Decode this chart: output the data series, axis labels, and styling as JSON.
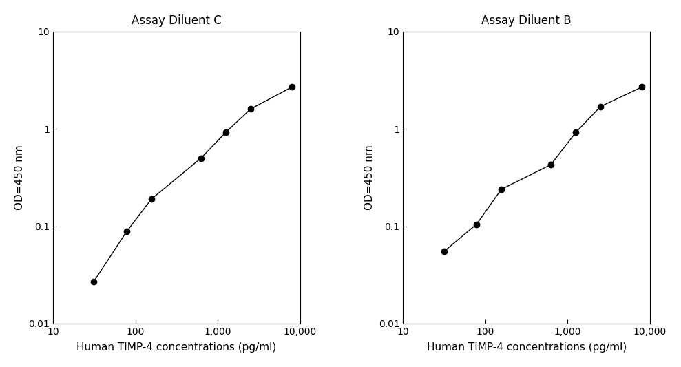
{
  "chart1": {
    "title": "Assay Diluent C",
    "x": [
      31.25,
      78.125,
      156.25,
      625,
      1250,
      2500,
      8000
    ],
    "y": [
      0.027,
      0.088,
      0.19,
      0.5,
      0.92,
      1.6,
      2.7
    ],
    "xlim": [
      10,
      10000
    ],
    "ylim": [
      0.01,
      10
    ],
    "xlabel": "Human TIMP-4 concentrations (pg/ml)",
    "ylabel": "OD=450 nm",
    "x_ticks": [
      10,
      100,
      1000,
      10000
    ],
    "x_labels": [
      "10",
      "100",
      "1,000",
      "10,000"
    ],
    "y_ticks": [
      0.01,
      0.1,
      1,
      10
    ],
    "y_labels": [
      "0.01",
      "0.1",
      "1",
      "10"
    ]
  },
  "chart2": {
    "title": "Assay Diluent B",
    "x": [
      31.25,
      78.125,
      156.25,
      625,
      1250,
      2500,
      8000
    ],
    "y": [
      0.055,
      0.105,
      0.24,
      0.43,
      0.92,
      1.7,
      2.7
    ],
    "xlim": [
      10,
      10000
    ],
    "ylim": [
      0.01,
      10
    ],
    "xlabel": "Human TIMP-4 concentrations (pg/ml)",
    "ylabel": "OD=450 nm",
    "x_ticks": [
      10,
      100,
      1000,
      10000
    ],
    "x_labels": [
      "10",
      "100",
      "1,000",
      "10,000"
    ],
    "y_ticks": [
      0.01,
      0.1,
      1,
      10
    ],
    "y_labels": [
      "0.01",
      "0.1",
      "1",
      "10"
    ]
  },
  "line_color": "#000000",
  "marker_color": "#000000",
  "marker_size": 6,
  "line_width": 1.0,
  "title_fontsize": 12,
  "label_fontsize": 11,
  "tick_fontsize": 10,
  "spine_linewidth": 0.8,
  "background_color": "#ffffff",
  "fig_width": 9.89,
  "fig_height": 5.33,
  "dpi": 100
}
